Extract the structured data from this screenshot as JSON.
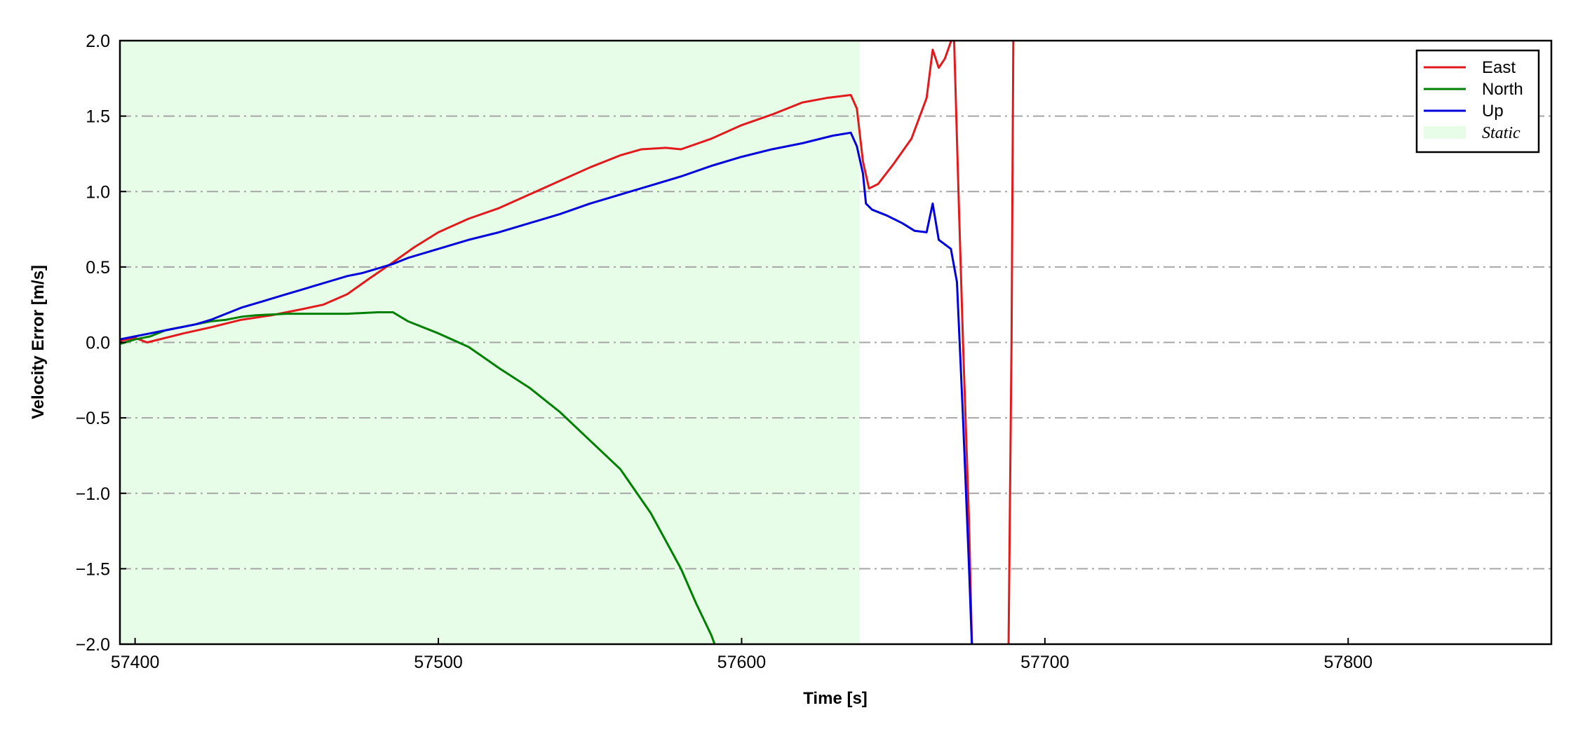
{
  "chart_data": {
    "type": "line",
    "title": "",
    "xlabel": "Time [s]",
    "ylabel": "Velocity Error [m/s]",
    "xlim": [
      57395,
      57867
    ],
    "ylim": [
      -2.0,
      2.0
    ],
    "xticks": [
      57400,
      57500,
      57600,
      57700,
      57800
    ],
    "xtick_labels": [
      "57400",
      "57500",
      "57600",
      "57700",
      "57800"
    ],
    "yticks": [
      2.0,
      1.5,
      1.0,
      0.5,
      0.0,
      -0.5,
      -1.0,
      -1.5,
      -2.0
    ],
    "ytick_labels": [
      "2.0",
      "1.5",
      "1.0",
      "0.5",
      "0.0",
      "−0.5",
      "−1.0",
      "−1.5",
      "−2.0"
    ],
    "grid": "horizontal dash-dot",
    "legend_position": "top-right",
    "shaded_regions": [
      {
        "name": "Static",
        "x_start": 57395,
        "x_end": 57639,
        "color": "#e8fde8"
      }
    ],
    "series": [
      {
        "name": "East",
        "color": "#e31a1c",
        "points": [
          [
            57395,
            0.01
          ],
          [
            57400,
            0.03
          ],
          [
            57404,
            0.0
          ],
          [
            57410,
            0.03
          ],
          [
            57416,
            0.06
          ],
          [
            57425,
            0.1
          ],
          [
            57435,
            0.15
          ],
          [
            57445,
            0.18
          ],
          [
            57455,
            0.22
          ],
          [
            57462,
            0.25
          ],
          [
            57470,
            0.32
          ],
          [
            57477,
            0.42
          ],
          [
            57485,
            0.53
          ],
          [
            57492,
            0.63
          ],
          [
            57500,
            0.73
          ],
          [
            57510,
            0.82
          ],
          [
            57520,
            0.89
          ],
          [
            57530,
            0.98
          ],
          [
            57540,
            1.07
          ],
          [
            57550,
            1.16
          ],
          [
            57560,
            1.24
          ],
          [
            57567,
            1.28
          ],
          [
            57575,
            1.29
          ],
          [
            57580,
            1.28
          ],
          [
            57590,
            1.35
          ],
          [
            57600,
            1.44
          ],
          [
            57610,
            1.51
          ],
          [
            57620,
            1.59
          ],
          [
            57628,
            1.62
          ],
          [
            57636,
            1.64
          ],
          [
            57638,
            1.55
          ],
          [
            57640,
            1.2
          ],
          [
            57642,
            1.02
          ],
          [
            57645,
            1.05
          ],
          [
            57650,
            1.18
          ],
          [
            57656,
            1.35
          ],
          [
            57661,
            1.62
          ],
          [
            57663,
            1.94
          ],
          [
            57665,
            1.82
          ],
          [
            57667,
            1.88
          ],
          [
            57670,
            2.05
          ],
          [
            57671.5,
            1.0
          ],
          [
            57673,
            0.0
          ],
          [
            57675,
            -1.2
          ],
          [
            57676,
            -2.05
          ],
          [
            57688,
            -2.05
          ],
          [
            57689,
            0.0
          ],
          [
            57689.6,
            2.05
          ]
        ]
      },
      {
        "name": "North",
        "color": "#008000",
        "points": [
          [
            57395,
            -0.01
          ],
          [
            57400,
            0.02
          ],
          [
            57405,
            0.04
          ],
          [
            57410,
            0.08
          ],
          [
            57415,
            0.1
          ],
          [
            57420,
            0.12
          ],
          [
            57425,
            0.14
          ],
          [
            57430,
            0.15
          ],
          [
            57435,
            0.17
          ],
          [
            57440,
            0.18
          ],
          [
            57450,
            0.19
          ],
          [
            57460,
            0.19
          ],
          [
            57470,
            0.19
          ],
          [
            57480,
            0.2
          ],
          [
            57485,
            0.2
          ],
          [
            57490,
            0.14
          ],
          [
            57500,
            0.06
          ],
          [
            57510,
            -0.03
          ],
          [
            57520,
            -0.17
          ],
          [
            57530,
            -0.3
          ],
          [
            57540,
            -0.46
          ],
          [
            57550,
            -0.65
          ],
          [
            57560,
            -0.84
          ],
          [
            57570,
            -1.13
          ],
          [
            57580,
            -1.5
          ],
          [
            57585,
            -1.73
          ],
          [
            57590,
            -1.94
          ],
          [
            57592,
            -2.05
          ]
        ]
      },
      {
        "name": "Up",
        "color": "#0000dd",
        "points": [
          [
            57395,
            0.02
          ],
          [
            57400,
            0.04
          ],
          [
            57405,
            0.06
          ],
          [
            57410,
            0.08
          ],
          [
            57415,
            0.1
          ],
          [
            57420,
            0.12
          ],
          [
            57425,
            0.15
          ],
          [
            57430,
            0.19
          ],
          [
            57435,
            0.23
          ],
          [
            57440,
            0.26
          ],
          [
            57445,
            0.29
          ],
          [
            57450,
            0.32
          ],
          [
            57455,
            0.35
          ],
          [
            57460,
            0.38
          ],
          [
            57465,
            0.41
          ],
          [
            57470,
            0.44
          ],
          [
            57475,
            0.46
          ],
          [
            57480,
            0.49
          ],
          [
            57485,
            0.52
          ],
          [
            57490,
            0.56
          ],
          [
            57500,
            0.62
          ],
          [
            57510,
            0.68
          ],
          [
            57520,
            0.73
          ],
          [
            57530,
            0.79
          ],
          [
            57540,
            0.85
          ],
          [
            57550,
            0.92
          ],
          [
            57560,
            0.98
          ],
          [
            57570,
            1.04
          ],
          [
            57580,
            1.1
          ],
          [
            57590,
            1.17
          ],
          [
            57600,
            1.23
          ],
          [
            57610,
            1.28
          ],
          [
            57620,
            1.32
          ],
          [
            57630,
            1.37
          ],
          [
            57636,
            1.39
          ],
          [
            57638,
            1.3
          ],
          [
            57640,
            1.12
          ],
          [
            57641,
            0.92
          ],
          [
            57643,
            0.88
          ],
          [
            57648,
            0.84
          ],
          [
            57653,
            0.79
          ],
          [
            57657,
            0.74
          ],
          [
            57661,
            0.73
          ],
          [
            57663,
            0.92
          ],
          [
            57665,
            0.68
          ],
          [
            57669,
            0.62
          ],
          [
            57671,
            0.4
          ],
          [
            57673,
            -0.5
          ],
          [
            57675,
            -1.5
          ],
          [
            57676,
            -2.05
          ]
        ]
      }
    ]
  },
  "legend": {
    "items": [
      {
        "label": "East",
        "color": "#e31a1c",
        "kind": "line"
      },
      {
        "label": "North",
        "color": "#008000",
        "kind": "line"
      },
      {
        "label": "Up",
        "color": "#0000dd",
        "kind": "line"
      },
      {
        "label": "Static",
        "color": "#e8fde8",
        "kind": "patch"
      }
    ]
  }
}
